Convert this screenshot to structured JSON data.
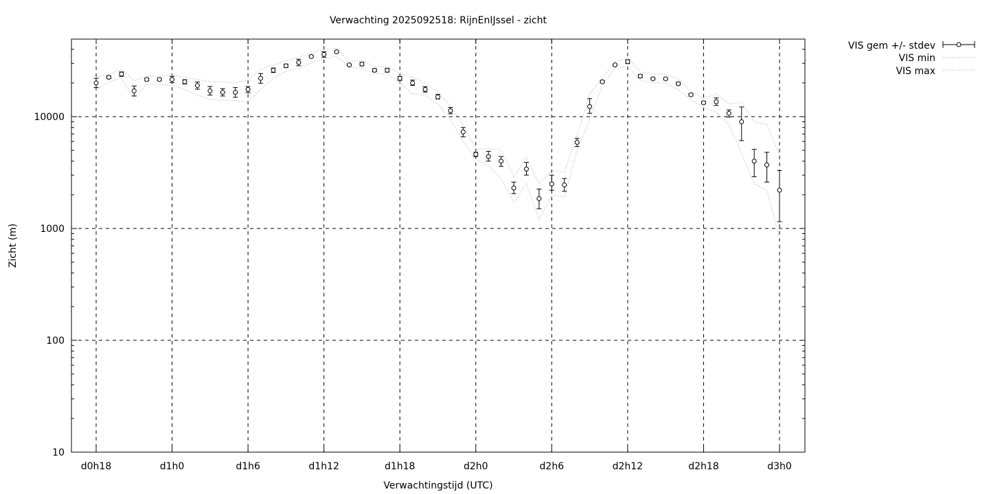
{
  "chart_data": {
    "type": "line",
    "title": "Verwachting 2025092518: RijnEnIJssel - zicht",
    "xlabel": "Verwachtingstijd (UTC)",
    "ylabel": "Zicht (m)",
    "yscale": "log",
    "ylim": [
      10,
      50000
    ],
    "xlim": [
      -2,
      56
    ],
    "grid": true,
    "legend_position": "top-right-outside",
    "x_ticks": [
      {
        "x": 0,
        "label": "d0h18"
      },
      {
        "x": 6,
        "label": "d1h0"
      },
      {
        "x": 12,
        "label": "d1h6"
      },
      {
        "x": 18,
        "label": "d1h12"
      },
      {
        "x": 24,
        "label": "d1h18"
      },
      {
        "x": 30,
        "label": "d2h0"
      },
      {
        "x": 36,
        "label": "d2h6"
      },
      {
        "x": 42,
        "label": "d2h12"
      },
      {
        "x": 48,
        "label": "d2h18"
      },
      {
        "x": 54,
        "label": "d3h0"
      }
    ],
    "y_ticks": [
      {
        "y": 10,
        "label": "10"
      },
      {
        "y": 100,
        "label": "100"
      },
      {
        "y": 1000,
        "label": "1000"
      },
      {
        "y": 10000,
        "label": "10000"
      }
    ],
    "series": [
      {
        "name": "VIS gem +/- stdev",
        "style": "errorbars",
        "color": "#000000",
        "x": [
          0,
          1,
          2,
          3,
          4,
          5,
          6,
          7,
          8,
          9,
          10,
          11,
          12,
          13,
          14,
          15,
          16,
          17,
          18,
          19,
          20,
          21,
          22,
          23,
          24,
          25,
          26,
          27,
          28,
          29,
          30,
          31,
          32,
          33,
          34,
          35,
          36,
          37,
          38,
          39,
          40,
          41,
          42,
          43,
          44,
          45,
          46,
          47,
          48,
          49,
          50,
          51,
          52,
          53,
          54
        ],
        "mean": [
          20000,
          22500,
          24000,
          17000,
          21500,
          21500,
          21500,
          20500,
          19000,
          17000,
          16500,
          16500,
          17500,
          22000,
          26000,
          28500,
          30500,
          34500,
          36000,
          38000,
          29000,
          29500,
          26000,
          26000,
          22000,
          20000,
          17500,
          15000,
          11300,
          7300,
          4600,
          4400,
          4000,
          2300,
          3400,
          1850,
          2500,
          2450,
          5900,
          12300,
          20500,
          29000,
          31000,
          23000,
          21800,
          21800,
          19700,
          15700,
          13300,
          13600,
          10700,
          9000,
          4000,
          3700,
          2200
        ],
        "low": [
          18200,
          21900,
          22900,
          15300,
          20900,
          20900,
          20100,
          19600,
          17600,
          15600,
          15300,
          14900,
          16400,
          19900,
          24800,
          27500,
          28500,
          33800,
          34000,
          37500,
          28500,
          28500,
          25300,
          25000,
          21100,
          19000,
          16600,
          14400,
          10600,
          6600,
          4400,
          4000,
          3600,
          2050,
          3000,
          1500,
          2200,
          2150,
          5400,
          10700,
          20000,
          28500,
          29800,
          22300,
          21400,
          21300,
          19200,
          15300,
          13000,
          12600,
          9900,
          6100,
          2900,
          2600,
          1150
        ],
        "high": [
          22000,
          23200,
          25100,
          18800,
          22100,
          22100,
          22900,
          21400,
          20400,
          18600,
          17800,
          18200,
          18600,
          24300,
          27200,
          29500,
          32600,
          35300,
          38000,
          38800,
          29500,
          30600,
          26800,
          27000,
          22900,
          21200,
          18500,
          15800,
          12100,
          8000,
          4800,
          4900,
          4400,
          2600,
          3900,
          2250,
          3000,
          2800,
          6400,
          14500,
          21100,
          29500,
          32300,
          23800,
          22300,
          22300,
          20300,
          16100,
          13700,
          14700,
          11500,
          12200,
          5100,
          4800,
          3300
        ]
      },
      {
        "name": "VIS min",
        "style": "dotted",
        "color": "#bbbbbb",
        "x": [
          0,
          1,
          2,
          3,
          4,
          5,
          6,
          7,
          8,
          9,
          10,
          11,
          12,
          13,
          14,
          15,
          16,
          17,
          18,
          19,
          20,
          21,
          22,
          23,
          24,
          25,
          26,
          27,
          28,
          29,
          30,
          31,
          32,
          33,
          34,
          35,
          36,
          37,
          38,
          39,
          40,
          41,
          42,
          43,
          44,
          45,
          46,
          47,
          48,
          49,
          50,
          51,
          52,
          53,
          54
        ],
        "values": [
          17500,
          20500,
          22000,
          14500,
          19500,
          19500,
          19000,
          17500,
          15500,
          14200,
          14000,
          14000,
          13500,
          17500,
          22000,
          25500,
          27000,
          30000,
          33000,
          34500,
          27500,
          27000,
          24500,
          24000,
          20000,
          16000,
          15500,
          13000,
          9500,
          6000,
          4200,
          3600,
          2800,
          1700,
          2500,
          1200,
          2000,
          1900,
          5000,
          9500,
          19000,
          27000,
          28000,
          21000,
          20000,
          20000,
          17500,
          14200,
          12000,
          11000,
          8500,
          4700,
          2500,
          2200,
          800
        ]
      },
      {
        "name": "VIS max",
        "style": "dotted",
        "color": "#bbbbbb",
        "x": [
          0,
          1,
          2,
          3,
          4,
          5,
          6,
          7,
          8,
          9,
          10,
          11,
          12,
          13,
          14,
          15,
          16,
          17,
          18,
          19,
          20,
          21,
          22,
          23,
          24,
          25,
          26,
          27,
          28,
          29,
          30,
          31,
          32,
          33,
          34,
          35,
          36,
          37,
          38,
          39,
          40,
          41,
          42,
          43,
          44,
          45,
          46,
          47,
          48,
          49,
          50,
          51,
          52,
          53,
          54
        ],
        "values": [
          22500,
          24000,
          26500,
          21000,
          23000,
          23000,
          23500,
          22500,
          21500,
          20500,
          20500,
          20000,
          21500,
          26500,
          29000,
          31500,
          34000,
          37000,
          40000,
          40500,
          31000,
          32000,
          28000,
          28000,
          24500,
          22500,
          20000,
          16500,
          12500,
          8500,
          5100,
          5200,
          5000,
          2900,
          4300,
          2500,
          3300,
          3200,
          6800,
          16000,
          22000,
          31000,
          34000,
          25000,
          24000,
          24000,
          21500,
          17000,
          14500,
          16000,
          13000,
          13500,
          9000,
          8500,
          4500
        ]
      }
    ]
  }
}
